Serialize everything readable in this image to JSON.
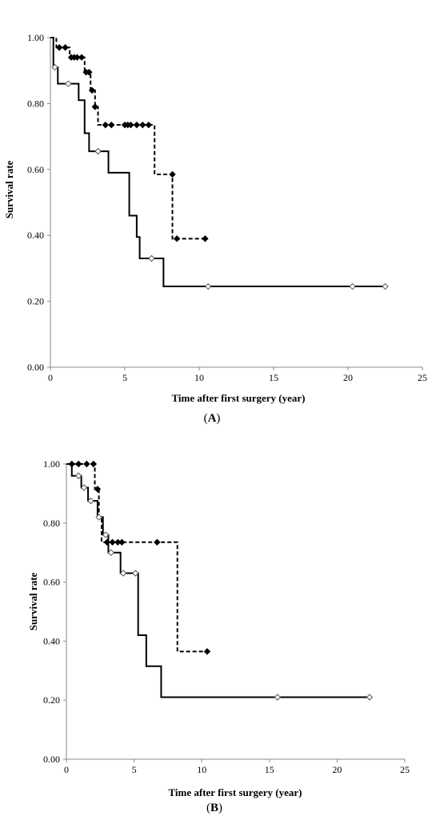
{
  "figure": {
    "background": "#ffffff",
    "ink": "#000000"
  },
  "chart_data": [
    {
      "type": "line",
      "panel": "A",
      "caption_open": "(",
      "caption_letter": "A",
      "caption_close": ")",
      "xlabel": "Time after first surgery (year)",
      "ylabel": "Survival rate",
      "xlim": [
        0,
        25
      ],
      "ylim": [
        0,
        1
      ],
      "xticks": [
        "0",
        "5",
        "10",
        "15",
        "20",
        "25"
      ],
      "yticks": [
        "0.00",
        "0.20",
        "0.40",
        "0.60",
        "0.80",
        "1.00"
      ],
      "grid": false,
      "legend": "none",
      "series": [
        {
          "style": "dashed",
          "marker": "filled-diamond",
          "steps": [
            [
              0,
              1.0
            ],
            [
              0.4,
              0.97
            ],
            [
              1.3,
              0.94
            ],
            [
              2.3,
              0.895
            ],
            [
              2.7,
              0.84
            ],
            [
              3.0,
              0.79
            ],
            [
              3.2,
              0.735
            ],
            [
              7.0,
              0.585
            ],
            [
              8.2,
              0.39
            ],
            [
              10.4,
              0.39
            ]
          ],
          "censored": [
            [
              0.6,
              0.97
            ],
            [
              1.0,
              0.97
            ],
            [
              1.4,
              0.94
            ],
            [
              1.6,
              0.94
            ],
            [
              1.8,
              0.94
            ],
            [
              2.1,
              0.94
            ],
            [
              2.4,
              0.895
            ],
            [
              2.6,
              0.895
            ],
            [
              2.8,
              0.84
            ],
            [
              3.0,
              0.79
            ],
            [
              3.7,
              0.735
            ],
            [
              4.1,
              0.735
            ],
            [
              5.0,
              0.735
            ],
            [
              5.2,
              0.735
            ],
            [
              5.4,
              0.735
            ],
            [
              5.8,
              0.735
            ],
            [
              6.2,
              0.735
            ],
            [
              6.6,
              0.735
            ],
            [
              8.2,
              0.585
            ],
            [
              8.5,
              0.39
            ],
            [
              10.4,
              0.39
            ]
          ]
        },
        {
          "style": "solid",
          "marker": "open-diamond",
          "steps": [
            [
              0,
              1.0
            ],
            [
              0.2,
              0.91
            ],
            [
              0.5,
              0.86
            ],
            [
              1.9,
              0.81
            ],
            [
              2.3,
              0.71
            ],
            [
              2.6,
              0.655
            ],
            [
              3.9,
              0.59
            ],
            [
              5.3,
              0.46
            ],
            [
              5.8,
              0.395
            ],
            [
              6.0,
              0.33
            ],
            [
              7.6,
              0.245
            ],
            [
              22.5,
              0.245
            ]
          ],
          "censored": [
            [
              0.3,
              0.91
            ],
            [
              1.2,
              0.86
            ],
            [
              3.2,
              0.655
            ],
            [
              6.8,
              0.33
            ],
            [
              10.6,
              0.245
            ],
            [
              20.3,
              0.245
            ],
            [
              22.5,
              0.245
            ]
          ]
        }
      ]
    },
    {
      "type": "line",
      "panel": "B",
      "caption_open": "(",
      "caption_letter": "B",
      "caption_close": ")",
      "xlabel": "Time after first surgery (year)",
      "ylabel": "Survival rate",
      "xlim": [
        0,
        25
      ],
      "ylim": [
        0,
        1
      ],
      "xticks": [
        "0",
        "5",
        "10",
        "15",
        "20",
        "25"
      ],
      "yticks": [
        "0.00",
        "0.20",
        "0.40",
        "0.60",
        "0.80",
        "1.00"
      ],
      "grid": false,
      "legend": "none",
      "series": [
        {
          "style": "dashed",
          "marker": "filled-diamond",
          "steps": [
            [
              0,
              1.0
            ],
            [
              2.1,
              0.915
            ],
            [
              2.4,
              0.82
            ],
            [
              2.6,
              0.735
            ],
            [
              8.2,
              0.365
            ],
            [
              10.4,
              0.365
            ]
          ],
          "censored": [
            [
              0.4,
              1.0
            ],
            [
              0.9,
              1.0
            ],
            [
              1.5,
              1.0
            ],
            [
              2.0,
              1.0
            ],
            [
              2.3,
              0.915
            ],
            [
              3.0,
              0.735
            ],
            [
              3.4,
              0.735
            ],
            [
              3.8,
              0.735
            ],
            [
              4.1,
              0.735
            ],
            [
              6.7,
              0.735
            ],
            [
              10.4,
              0.365
            ]
          ]
        },
        {
          "style": "solid",
          "marker": "open-diamond",
          "steps": [
            [
              0,
              1.0
            ],
            [
              0.4,
              0.96
            ],
            [
              1.1,
              0.92
            ],
            [
              1.6,
              0.875
            ],
            [
              2.3,
              0.82
            ],
            [
              2.7,
              0.76
            ],
            [
              3.1,
              0.7
            ],
            [
              4.0,
              0.63
            ],
            [
              5.3,
              0.42
            ],
            [
              5.9,
              0.315
            ],
            [
              7.0,
              0.21
            ],
            [
              22.4,
              0.21
            ]
          ],
          "censored": [
            [
              0.9,
              0.96
            ],
            [
              1.3,
              0.92
            ],
            [
              1.8,
              0.875
            ],
            [
              2.4,
              0.82
            ],
            [
              2.9,
              0.76
            ],
            [
              3.3,
              0.7
            ],
            [
              4.2,
              0.63
            ],
            [
              5.1,
              0.63
            ],
            [
              15.6,
              0.21
            ],
            [
              22.4,
              0.21
            ]
          ]
        }
      ]
    }
  ]
}
